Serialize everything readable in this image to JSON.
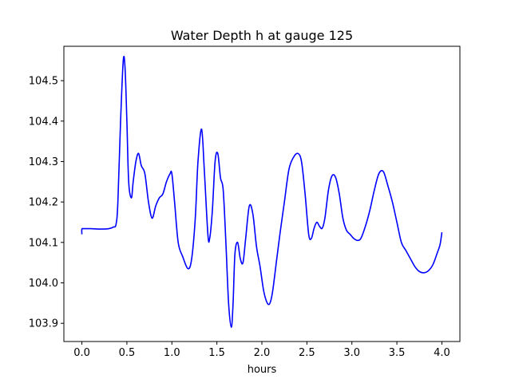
{
  "chart_data": {
    "type": "line",
    "title": "Water Depth h at gauge 125",
    "xlabel": "hours",
    "ylabel": "",
    "xlim": [
      -0.2,
      4.2
    ],
    "ylim": [
      103.855,
      104.585
    ],
    "xticks": [
      0.0,
      0.5,
      1.0,
      1.5,
      2.0,
      2.5,
      3.0,
      3.5,
      4.0
    ],
    "xtick_labels": [
      "0.0",
      "0.5",
      "1.0",
      "1.5",
      "2.0",
      "2.5",
      "3.0",
      "3.5",
      "4.0"
    ],
    "yticks": [
      103.9,
      104.0,
      104.1,
      104.2,
      104.3,
      104.4,
      104.5
    ],
    "ytick_labels": [
      "103.9",
      "104.0",
      "104.1",
      "104.2",
      "104.3",
      "104.4",
      "104.5"
    ],
    "grid": false,
    "series": [
      {
        "color": "#0000ff",
        "x": [
          0.0,
          0.0,
          0.02,
          0.1,
          0.2,
          0.3,
          0.35,
          0.38,
          0.4,
          0.43,
          0.46,
          0.48,
          0.5,
          0.52,
          0.55,
          0.57,
          0.6,
          0.63,
          0.66,
          0.7,
          0.74,
          0.78,
          0.82,
          0.86,
          0.9,
          0.94,
          0.98,
          1.0,
          1.03,
          1.07,
          1.12,
          1.18,
          1.22,
          1.26,
          1.29,
          1.33,
          1.36,
          1.4,
          1.42,
          1.45,
          1.48,
          1.51,
          1.54,
          1.57,
          1.6,
          1.63,
          1.66,
          1.68,
          1.7,
          1.73,
          1.76,
          1.79,
          1.82,
          1.86,
          1.9,
          1.94,
          1.98,
          2.02,
          2.06,
          2.09,
          2.12,
          2.16,
          2.2,
          2.25,
          2.3,
          2.35,
          2.4,
          2.44,
          2.48,
          2.52,
          2.55,
          2.58,
          2.61,
          2.64,
          2.67,
          2.7,
          2.74,
          2.78,
          2.82,
          2.86,
          2.9,
          2.94,
          2.98,
          3.02,
          3.06,
          3.1,
          3.15,
          3.2,
          3.25,
          3.3,
          3.35,
          3.4,
          3.45,
          3.5,
          3.55,
          3.6,
          3.65,
          3.7,
          3.75,
          3.8,
          3.85,
          3.9,
          3.95,
          3.98,
          4.0
        ],
        "y": [
          104.12,
          104.133,
          104.134,
          104.134,
          104.133,
          104.134,
          104.138,
          104.145,
          104.2,
          104.4,
          104.55,
          104.53,
          104.4,
          104.25,
          104.21,
          104.25,
          104.3,
          104.32,
          104.29,
          104.27,
          104.2,
          104.16,
          104.19,
          104.21,
          104.22,
          104.25,
          104.27,
          104.27,
          104.2,
          104.1,
          104.065,
          104.035,
          104.06,
          104.16,
          104.3,
          104.38,
          104.28,
          104.12,
          104.11,
          104.18,
          104.3,
          104.32,
          104.26,
          104.23,
          104.1,
          103.95,
          103.89,
          103.95,
          104.07,
          104.1,
          104.06,
          104.05,
          104.11,
          104.19,
          104.17,
          104.09,
          104.04,
          103.98,
          103.95,
          103.95,
          103.98,
          104.05,
          104.12,
          104.2,
          104.28,
          104.31,
          104.32,
          104.3,
          104.22,
          104.12,
          104.11,
          104.135,
          104.15,
          104.14,
          104.135,
          104.16,
          104.23,
          104.265,
          104.26,
          104.22,
          104.16,
          104.13,
          104.12,
          104.11,
          104.105,
          104.11,
          104.14,
          104.18,
          104.23,
          104.27,
          104.275,
          104.24,
          104.2,
          104.15,
          104.1,
          104.08,
          104.06,
          104.04,
          104.028,
          104.025,
          104.03,
          104.045,
          104.075,
          104.095,
          104.125
        ]
      }
    ]
  }
}
